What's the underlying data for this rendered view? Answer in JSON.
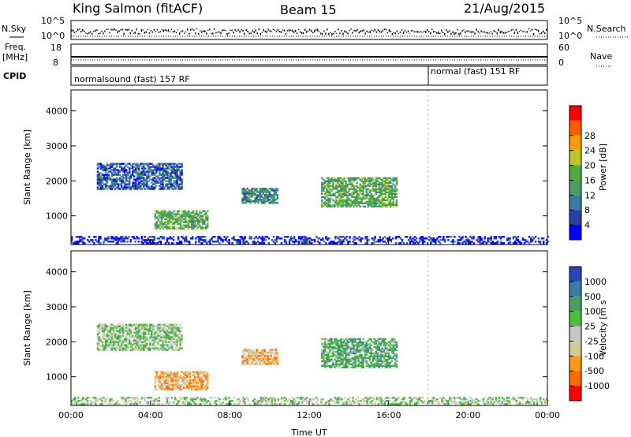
{
  "header": {
    "station": "King Salmon (fitACF)",
    "beam": "Beam 15",
    "date": "21/Aug/2015"
  },
  "noise_panel": {
    "left_label": "N.Sky",
    "right_label": "N.Search",
    "left_ticks": [
      "10^5",
      "10^0"
    ],
    "right_ticks": [
      "10^5",
      "10^0"
    ]
  },
  "freq_panel": {
    "left_label_1": "Freq.",
    "left_label_2": "[MHz]",
    "right_label": "Nave",
    "left_ticks": [
      "18",
      "8"
    ],
    "right_ticks": [
      "60",
      "0"
    ]
  },
  "cpid_panel": {
    "label": "CPID",
    "segments": [
      {
        "name": "normalsound (fast) 157 RF",
        "start_ut": 0,
        "end_ut": 18
      },
      {
        "name": "normal (fast) 151 RF",
        "start_ut": 18,
        "end_ut": 24
      }
    ]
  },
  "colors": {
    "power": [
      "#0000ff",
      "#2a3f9f",
      "#3a7ca8",
      "#4a9e60",
      "#4cae3c",
      "#b8c62c",
      "#ff9a00",
      "#ff5a00",
      "#ff0000"
    ],
    "velocity": [
      "#2a45b8",
      "#3a7ca8",
      "#4a9e60",
      "#4cbe3c",
      "#c8c8c8",
      "#d8c89a",
      "#ff9a1a",
      "#ff6a00",
      "#ff0000"
    ]
  },
  "chart_data": [
    {
      "type": "heatmap",
      "name": "power",
      "xlabel": "",
      "ylabel": "Slant Range [km]",
      "xlim": [
        0,
        24
      ],
      "ylim": [
        180,
        4600
      ],
      "yticks": [
        "1000",
        "2000",
        "3000",
        "4000"
      ],
      "colorbar_label": "Power [dB]",
      "colorbar_ticks": [
        "4",
        "8",
        "12",
        "16",
        "20",
        "24",
        "28"
      ],
      "regions": [
        {
          "t": [
            1.3,
            5.6
          ],
          "r": [
            1750,
            2500
          ],
          "level": 2
        },
        {
          "t": [
            4.2,
            6.9
          ],
          "r": [
            620,
            1150
          ],
          "level": 4
        },
        {
          "t": [
            8.6,
            10.4
          ],
          "r": [
            1350,
            1800
          ],
          "level": 3
        },
        {
          "t": [
            12.6,
            16.4
          ],
          "r": [
            1250,
            2100
          ],
          "level": 4
        },
        {
          "t": [
            0.0,
            24.0
          ],
          "r": [
            200,
            420
          ],
          "level": 1
        }
      ]
    },
    {
      "type": "heatmap",
      "name": "velocity",
      "xlabel": "Time UT",
      "ylabel": "Slant Range [km]",
      "xlim": [
        0,
        24
      ],
      "ylim": [
        180,
        4600
      ],
      "xticks": [
        "00:00",
        "04:00",
        "08:00",
        "12:00",
        "16:00",
        "20:00",
        "00:00"
      ],
      "yticks": [
        "1000",
        "2000",
        "3000",
        "4000"
      ],
      "colorbar_label": "Velocity [m s",
      "colorbar_ticks": [
        "1000",
        "500",
        "100",
        "25",
        "-25",
        "-100",
        "-500",
        "-1000"
      ],
      "regions": [
        {
          "t": [
            1.3,
            5.6
          ],
          "r": [
            1750,
            2500
          ],
          "level": 4
        },
        {
          "t": [
            4.2,
            6.9
          ],
          "r": [
            620,
            1150
          ],
          "level": 6
        },
        {
          "t": [
            8.6,
            10.4
          ],
          "r": [
            1350,
            1800
          ],
          "level": 6
        },
        {
          "t": [
            12.6,
            16.4
          ],
          "r": [
            1250,
            2100
          ],
          "level": 3
        },
        {
          "t": [
            0.0,
            24.0
          ],
          "r": [
            200,
            420
          ],
          "level": 4
        }
      ]
    }
  ]
}
